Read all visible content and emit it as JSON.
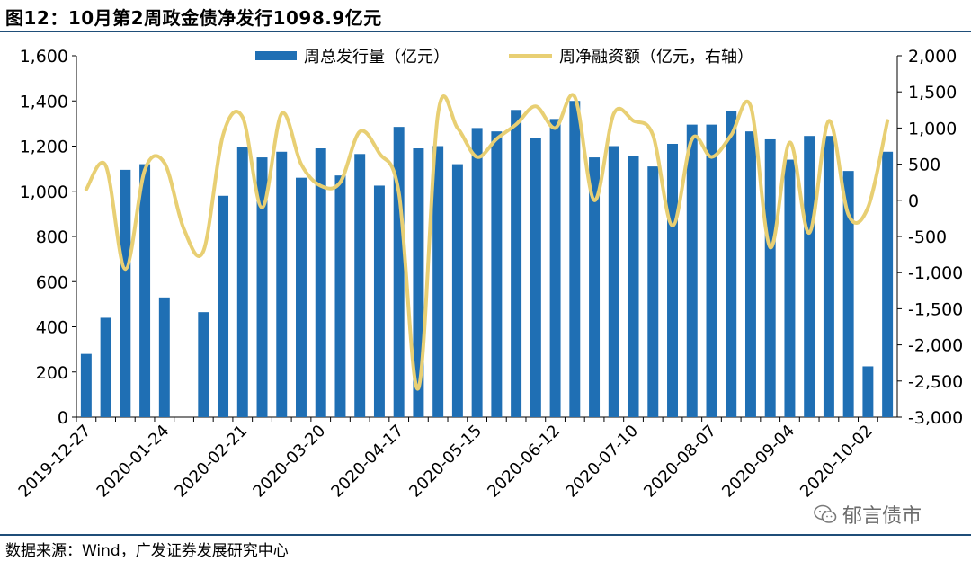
{
  "header": {
    "title": "图12：10月第2周政金债净发行1098.9亿元"
  },
  "footer": {
    "source": "数据来源：Wind，广发证券发展研究中心",
    "watermark": "郁言债市",
    "watermark_icon": "wechat-icon"
  },
  "colors": {
    "bar": "#1f6fb4",
    "line": "#e8cf73",
    "rule": "#1f4e79"
  },
  "chart_data": {
    "type": "bar+line",
    "categories": [
      "2019-12-27",
      "2020-01-03",
      "2020-01-10",
      "2020-01-17",
      "2020-01-24",
      "2020-01-31",
      "2020-02-07",
      "2020-02-14",
      "2020-02-21",
      "2020-02-28",
      "2020-03-06",
      "2020-03-13",
      "2020-03-20",
      "2020-03-27",
      "2020-04-03",
      "2020-04-10",
      "2020-04-17",
      "2020-04-24",
      "2020-05-01",
      "2020-05-08",
      "2020-05-15",
      "2020-05-22",
      "2020-05-29",
      "2020-06-05",
      "2020-06-12",
      "2020-06-19",
      "2020-06-26",
      "2020-07-03",
      "2020-07-10",
      "2020-07-17",
      "2020-07-24",
      "2020-07-31",
      "2020-08-07",
      "2020-08-14",
      "2020-08-21",
      "2020-08-28",
      "2020-09-04",
      "2020-09-11",
      "2020-09-18",
      "2020-09-25",
      "2020-10-02",
      "2020-10-09"
    ],
    "x_tick_labels": [
      "2019-12-27",
      "2020-01-24",
      "2020-02-21",
      "2020-03-20",
      "2020-04-17",
      "2020-05-15",
      "2020-06-12",
      "2020-07-10",
      "2020-08-07",
      "2020-09-04",
      "2020-10-02"
    ],
    "series": [
      {
        "name": "周总发行量（亿元）",
        "type": "bar",
        "axis": "left",
        "values": [
          280,
          440,
          1095,
          1120,
          530,
          0,
          465,
          980,
          1195,
          1150,
          1175,
          1060,
          1190,
          1070,
          1165,
          1025,
          1285,
          1190,
          1200,
          1120,
          1280,
          1265,
          1360,
          1235,
          1320,
          1400,
          1150,
          1200,
          1155,
          1110,
          1210,
          1295,
          1295,
          1355,
          1265,
          1230,
          1140,
          1245,
          1245,
          1090,
          225,
          1175
        ]
      },
      {
        "name": "周净融资额（亿元，右轴）",
        "type": "line",
        "axis": "right",
        "values": [
          150,
          480,
          -950,
          420,
          520,
          -400,
          -700,
          900,
          1150,
          -100,
          1200,
          500,
          200,
          250,
          950,
          650,
          100,
          -2600,
          1200,
          1000,
          600,
          850,
          1050,
          1300,
          1000,
          1430,
          0,
          1200,
          1100,
          900,
          -350,
          850,
          600,
          900,
          1300,
          -650,
          800,
          -450,
          1100,
          -200,
          -100,
          1098.9
        ]
      }
    ],
    "y_left": {
      "min": 0,
      "max": 1600,
      "step": 200,
      "tick_labels": [
        "0",
        "200",
        "400",
        "600",
        "800",
        "1,000",
        "1,200",
        "1,400",
        "1,600"
      ]
    },
    "y_right": {
      "min": -3000,
      "max": 2000,
      "step": 500,
      "tick_labels": [
        "-3,000",
        "-2,500",
        "-2,000",
        "-1,500",
        "-1,000",
        "-500",
        "0",
        "500",
        "1,000",
        "1,500",
        "2,000"
      ]
    },
    "legend_position": "top-center",
    "grid": false
  }
}
